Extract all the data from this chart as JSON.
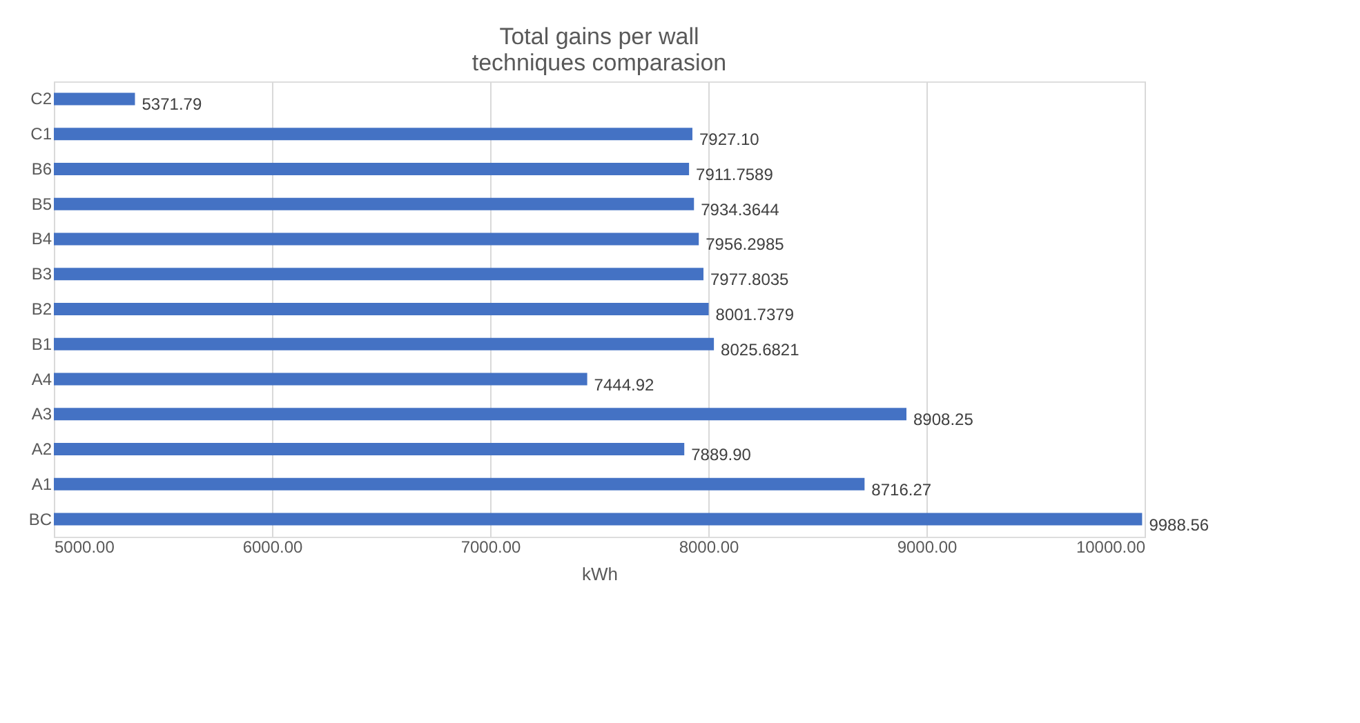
{
  "chart_data": {
    "type": "bar",
    "orientation": "horizontal",
    "title": "Total gains per wall\ntechniques comparasion",
    "xlabel": "kWh",
    "categories": [
      "C2",
      "C1",
      "B6",
      "B5",
      "B4",
      "B3",
      "B2",
      "B1",
      "A4",
      "A3",
      "A2",
      "A1",
      "BC"
    ],
    "values": [
      5371.79,
      7927.1,
      7911.7589,
      7934.3644,
      7956.2985,
      7977.8035,
      8001.7379,
      8025.6821,
      7444.92,
      8908.25,
      7889.9,
      8716.27,
      9988.56
    ],
    "value_labels": [
      "5371.79",
      "7927.10",
      "7911.7589",
      "7934.3644",
      "7956.2985",
      "7977.8035",
      "8001.7379",
      "8025.6821",
      "7444.92",
      "8908.25",
      "7889.90",
      "8716.27",
      "9988.56"
    ],
    "color": "#4472c4",
    "xlim": [
      5000,
      10000
    ],
    "xticks": [
      {
        "value": 5000,
        "label": "5000.00"
      },
      {
        "value": 6000,
        "label": "6000.00"
      },
      {
        "value": 7000,
        "label": "7000.00"
      },
      {
        "value": 8000,
        "label": "8000.00"
      },
      {
        "value": 9000,
        "label": "9000.00"
      },
      {
        "value": 10000,
        "label": "10000.00"
      }
    ],
    "grid": "x"
  }
}
